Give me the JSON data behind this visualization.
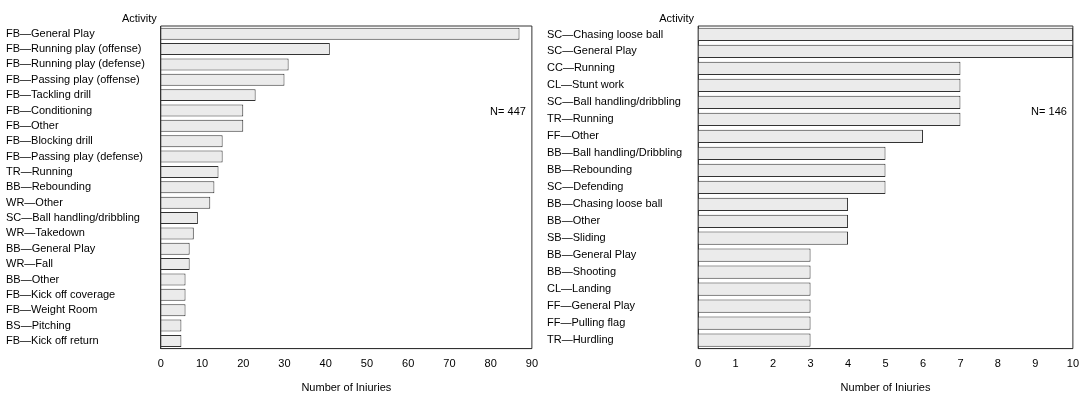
{
  "chart_data": [
    {
      "type": "bar",
      "orientation": "horizontal",
      "ylabel": "Activity",
      "xlabel": "Number of Iniuries",
      "categories": [
        "FB—General Play",
        "FB—Running play (offense)",
        "FB—Running play (defense)",
        "FB—Passing play (offense)",
        "FB—Tackling drill",
        "FB—Conditioning",
        "FB—Other",
        "FB—Blocking drill",
        "FB—Passing play (defense)",
        "TR—Running",
        "BB—Rebounding",
        "WR—Other",
        "SC—Ball handling/dribbling",
        "WR—Takedown",
        "BB—General Play",
        "WR—Fall",
        "BB—Other",
        "FB—Kick off coverage",
        "FB—Weight Room",
        "BS—Pitching",
        "FB—Kick off return"
      ],
      "series": [
        {
          "color": "#ebebeb",
          "values": [
            87,
            41,
            31,
            30,
            23,
            20,
            20,
            15,
            15,
            14,
            13,
            12,
            9,
            8,
            7,
            7,
            6,
            6,
            6,
            5,
            5
          ]
        }
      ],
      "xlim": [
        0,
        90
      ],
      "xticks": [
        0,
        10,
        20,
        30,
        40,
        50,
        60,
        70,
        80,
        90
      ],
      "grid": false,
      "legend": false,
      "annotations": [
        "N= 447"
      ]
    },
    {
      "type": "bar",
      "orientation": "horizontal",
      "ylabel": "Activity",
      "xlabel": "Number of Iniuries",
      "categories": [
        "SC—Chasing loose ball",
        "SC—General Play",
        "CC—Running",
        "CL—Stunt work",
        "SC—Ball handling/dribbling",
        "TR—Running",
        "FF—Other",
        "BB—Ball handling/Dribbling",
        "BB—Rebounding",
        "SC—Defending",
        "BB—Chasing loose ball",
        "BB—Other",
        "SB—Sliding",
        "BB—General Play",
        "BB—Shooting",
        "CL—Landing",
        "FF—General Play",
        "FF—Pulling flag",
        "TR—Hurdling"
      ],
      "series": [
        {
          "color": "#ebebeb",
          "values": [
            10,
            10,
            7,
            7,
            7,
            7,
            6,
            5,
            5,
            5,
            4,
            4,
            4,
            3,
            3,
            3,
            3,
            3,
            3
          ]
        }
      ],
      "xlim": [
        0,
        10
      ],
      "xticks": [
        0,
        1,
        2,
        3,
        4,
        5,
        6,
        7,
        8,
        9,
        10
      ],
      "grid": false,
      "legend": false,
      "annotations": [
        "N= 146"
      ]
    }
  ]
}
